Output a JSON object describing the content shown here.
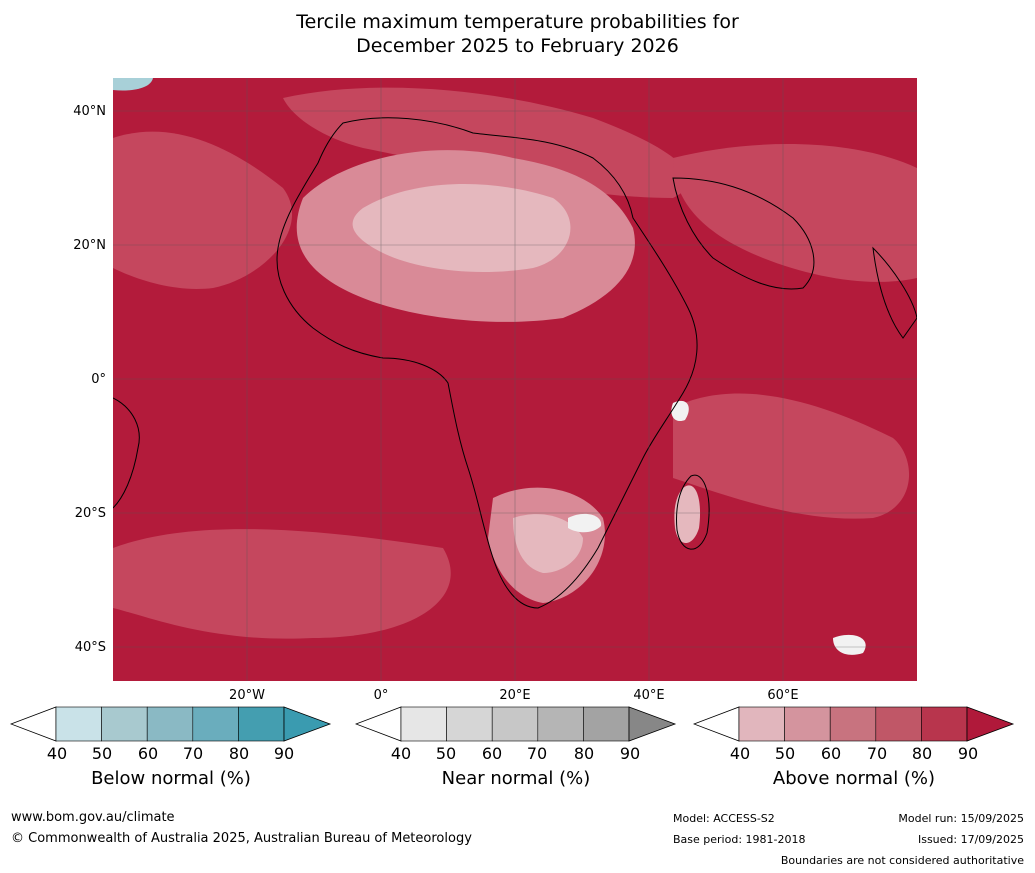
{
  "title_line1": "Tercile maximum temperature probabilities for",
  "title_line2": "December 2025 to February 2026",
  "lat_labels": [
    "40°N",
    "20°N",
    "0°",
    "20°S",
    "40°S"
  ],
  "lon_labels": [
    "20°W",
    "0°",
    "20°E",
    "40°E",
    "60°E"
  ],
  "colorbars": {
    "below": {
      "title": "Below normal (%)",
      "ticks": [
        "40",
        "50",
        "60",
        "70",
        "80",
        "90"
      ],
      "colors": [
        "#ffffff",
        "#c9e2e8",
        "#a8c9cf",
        "#8ab9c4",
        "#6aadbd",
        "#449eb0",
        "#3a9bb0"
      ]
    },
    "near": {
      "title": "Near normal (%)",
      "ticks": [
        "40",
        "50",
        "60",
        "70",
        "80",
        "90"
      ],
      "colors": [
        "#ffffff",
        "#e6e6e6",
        "#d6d6d6",
        "#c7c7c7",
        "#b5b5b5",
        "#a3a3a3",
        "#878787"
      ]
    },
    "above": {
      "title": "Above normal (%)",
      "ticks": [
        "40",
        "50",
        "60",
        "70",
        "80",
        "90"
      ],
      "colors": [
        "#ffffff",
        "#e1b6bd",
        "#d4949e",
        "#c8737f",
        "#c05767",
        "#b8354d",
        "#b0193a"
      ]
    }
  },
  "footer": {
    "website": "www.bom.gov.au/climate",
    "copyright": "© Commonwealth of Australia 2025, Australian Bureau of Meteorology",
    "model": "Model: ACCESS-S2",
    "base_period": "Base period: 1981-2018",
    "model_run": "Model run: 15/09/2025",
    "issued": "Issued: 17/09/2025",
    "disclaimer": "Boundaries are not considered authoritative"
  },
  "map_colors": {
    "ocean_high": "#b31b3b",
    "mid": "#c5475e",
    "low": "#d98a97",
    "very_low": "#e5b8be",
    "white": "#f2f2f2",
    "blue": "#a8d0d8",
    "grid": "#555555",
    "coast": "#000000",
    "border": "#888888"
  }
}
